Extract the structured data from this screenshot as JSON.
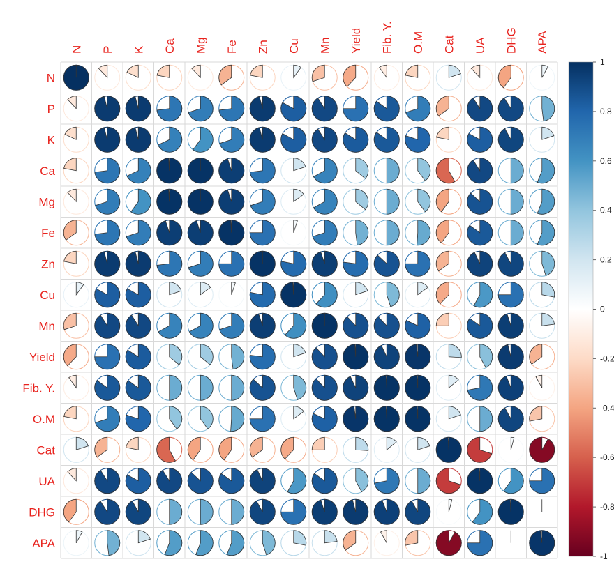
{
  "chart_data": {
    "type": "heatmap",
    "title": "",
    "glyph": "pie",
    "variables": [
      "N",
      "P",
      "K",
      "Ca",
      "Mg",
      "Fe",
      "Zn",
      "Cu",
      "Mn",
      "Yield",
      "Fib. Y.",
      "O.M",
      "Cat",
      "UA",
      "DHG",
      "APA"
    ],
    "matrix": [
      [
        1.0,
        -0.12,
        -0.18,
        -0.22,
        -0.12,
        -0.35,
        -0.22,
        0.1,
        -0.3,
        -0.38,
        -0.1,
        -0.22,
        0.2,
        -0.12,
        -0.4,
        0.08
      ],
      [
        -0.12,
        0.96,
        0.96,
        0.73,
        0.7,
        0.73,
        0.96,
        0.83,
        0.91,
        0.75,
        0.85,
        0.7,
        -0.35,
        0.91,
        0.91,
        0.48
      ],
      [
        -0.18,
        0.96,
        0.96,
        0.68,
        0.6,
        0.7,
        0.96,
        0.83,
        0.91,
        0.84,
        0.85,
        0.8,
        -0.22,
        0.83,
        0.92,
        0.2
      ],
      [
        -0.22,
        0.73,
        0.68,
        0.99,
        0.99,
        0.95,
        0.73,
        0.2,
        0.67,
        0.36,
        0.5,
        0.4,
        -0.58,
        0.91,
        0.5,
        0.56
      ],
      [
        -0.12,
        0.7,
        0.6,
        0.99,
        0.99,
        0.95,
        0.7,
        0.15,
        0.67,
        0.36,
        0.5,
        0.4,
        -0.4,
        0.87,
        0.5,
        0.56
      ],
      [
        -0.35,
        0.73,
        0.7,
        0.95,
        0.95,
        0.99,
        0.75,
        0.05,
        0.7,
        0.48,
        0.5,
        0.51,
        -0.4,
        0.85,
        0.5,
        0.56
      ],
      [
        -0.22,
        0.96,
        0.96,
        0.73,
        0.7,
        0.75,
        0.99,
        0.78,
        0.95,
        0.77,
        0.87,
        0.75,
        -0.35,
        0.93,
        0.92,
        0.45
      ],
      [
        0.1,
        0.83,
        0.83,
        0.2,
        0.15,
        0.05,
        0.78,
        0.99,
        0.62,
        0.2,
        0.45,
        0.15,
        -0.38,
        0.58,
        0.75,
        0.28
      ],
      [
        -0.3,
        0.91,
        0.91,
        0.67,
        0.67,
        0.7,
        0.95,
        0.62,
        0.99,
        0.88,
        0.88,
        0.82,
        -0.25,
        0.85,
        0.95,
        0.23
      ],
      [
        -0.38,
        0.75,
        0.84,
        0.36,
        0.36,
        0.48,
        0.77,
        0.2,
        0.88,
        0.99,
        0.93,
        0.98,
        0.26,
        0.42,
        0.96,
        -0.35
      ],
      [
        -0.1,
        0.85,
        0.85,
        0.5,
        0.5,
        0.5,
        0.87,
        0.45,
        0.88,
        0.93,
        0.99,
        0.99,
        0.14,
        0.72,
        0.94,
        -0.08
      ],
      [
        -0.22,
        0.7,
        0.8,
        0.4,
        0.4,
        0.51,
        0.75,
        0.15,
        0.82,
        0.98,
        0.99,
        0.99,
        0.2,
        0.5,
        0.92,
        -0.28
      ],
      [
        0.2,
        -0.35,
        -0.22,
        -0.58,
        -0.4,
        -0.4,
        -0.35,
        -0.38,
        -0.25,
        0.26,
        0.14,
        0.2,
        0.99,
        -0.7,
        0.04,
        -0.92
      ],
      [
        -0.12,
        0.91,
        0.83,
        0.91,
        0.87,
        0.85,
        0.93,
        0.58,
        0.85,
        0.42,
        0.72,
        0.5,
        -0.7,
        0.99,
        0.6,
        0.75
      ],
      [
        -0.4,
        0.91,
        0.92,
        0.5,
        0.5,
        0.5,
        0.92,
        0.75,
        0.95,
        0.96,
        0.94,
        0.92,
        0.04,
        0.6,
        0.99,
        0.0
      ],
      [
        0.08,
        0.48,
        0.2,
        0.56,
        0.56,
        0.56,
        0.45,
        0.28,
        0.23,
        -0.35,
        -0.08,
        -0.28,
        -0.92,
        0.75,
        0.0,
        0.98
      ]
    ],
    "colorbar": {
      "range": [
        -1,
        1
      ],
      "ticks": [
        "1",
        "0.8",
        "0.6",
        "0.4",
        "0.2",
        "0",
        "-0.2",
        "-0.4",
        "-0.6",
        "-0.8",
        "-1"
      ]
    },
    "legend": "right",
    "grid": true,
    "palette": {
      "negative_end": "#67001f",
      "negative_mid": "#d6604d",
      "negative_light": "#fddbc7",
      "neutral": "#ffffff",
      "positive_light": "#d1e5f0",
      "positive_mid": "#4393c3",
      "positive_end": "#053061",
      "label_color": "#e8231e",
      "grid_color": "#d9d9d9"
    }
  }
}
